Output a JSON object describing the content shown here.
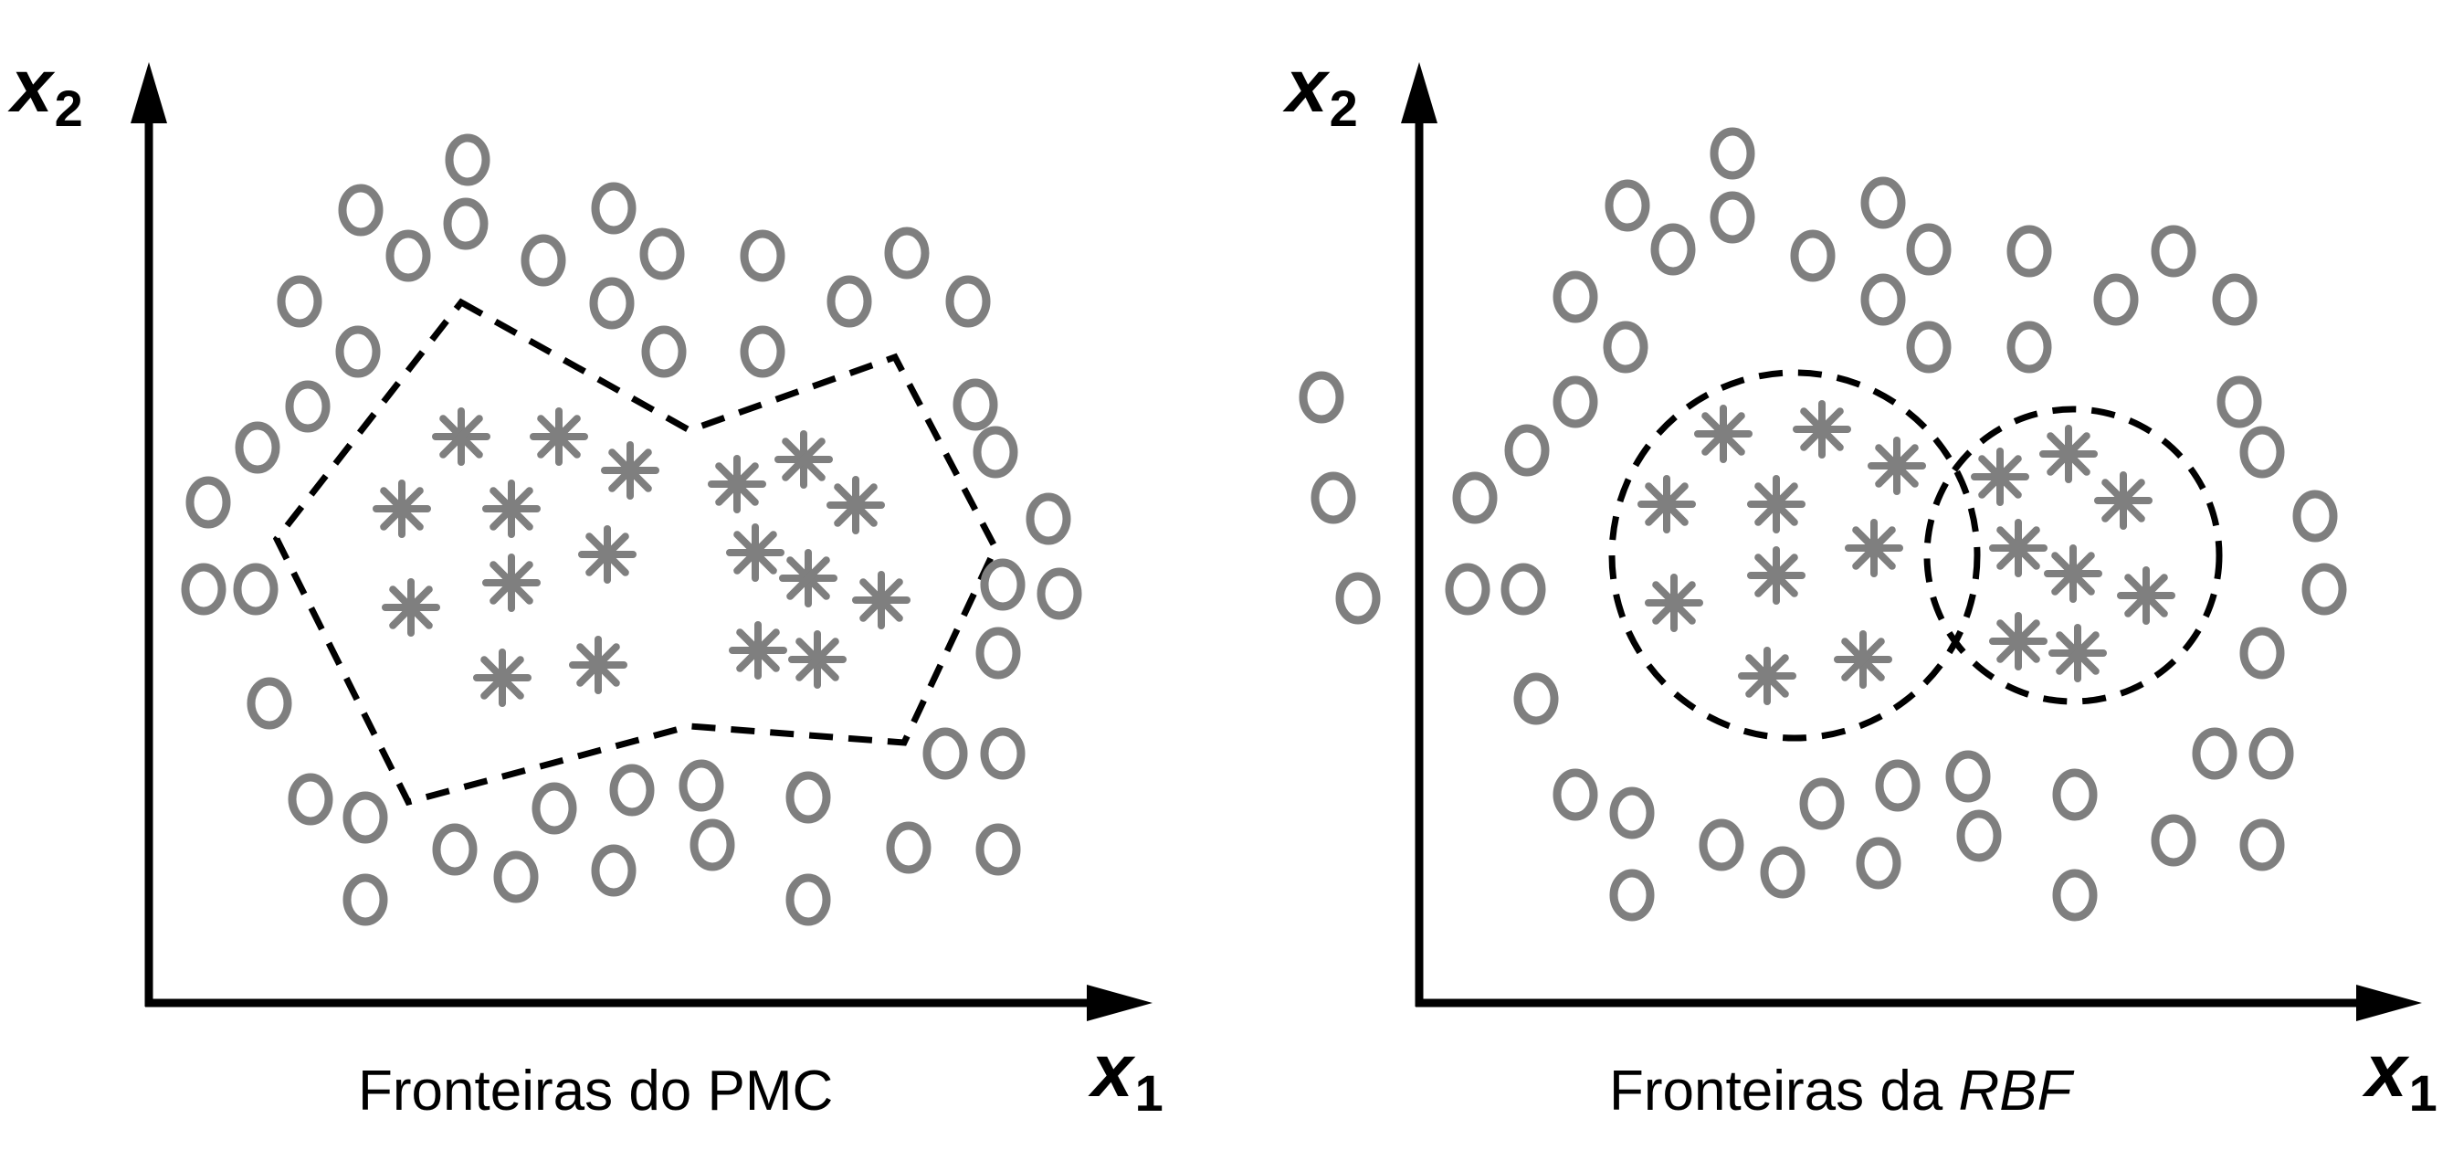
{
  "figure": {
    "panels": [
      {
        "caption_prefix": "Fronteiras do PMC",
        "caption_emph": "",
        "y_axis_label": "x",
        "y_axis_subscript": "2",
        "x_axis_label": "x",
        "x_axis_subscript": "1"
      },
      {
        "caption_prefix": "Fronteiras da ",
        "caption_emph": "RBF",
        "y_axis_label": "x",
        "y_axis_subscript": "2",
        "x_axis_label": "x",
        "x_axis_subscript": "1"
      }
    ],
    "colors": {
      "axis": "#000000",
      "marker": "#7f7f7f",
      "boundary": "#000000"
    },
    "marker_legend": {
      "outer_class_icon": "circle-icon",
      "inner_class_icon": "asterisk-icon"
    }
  }
}
